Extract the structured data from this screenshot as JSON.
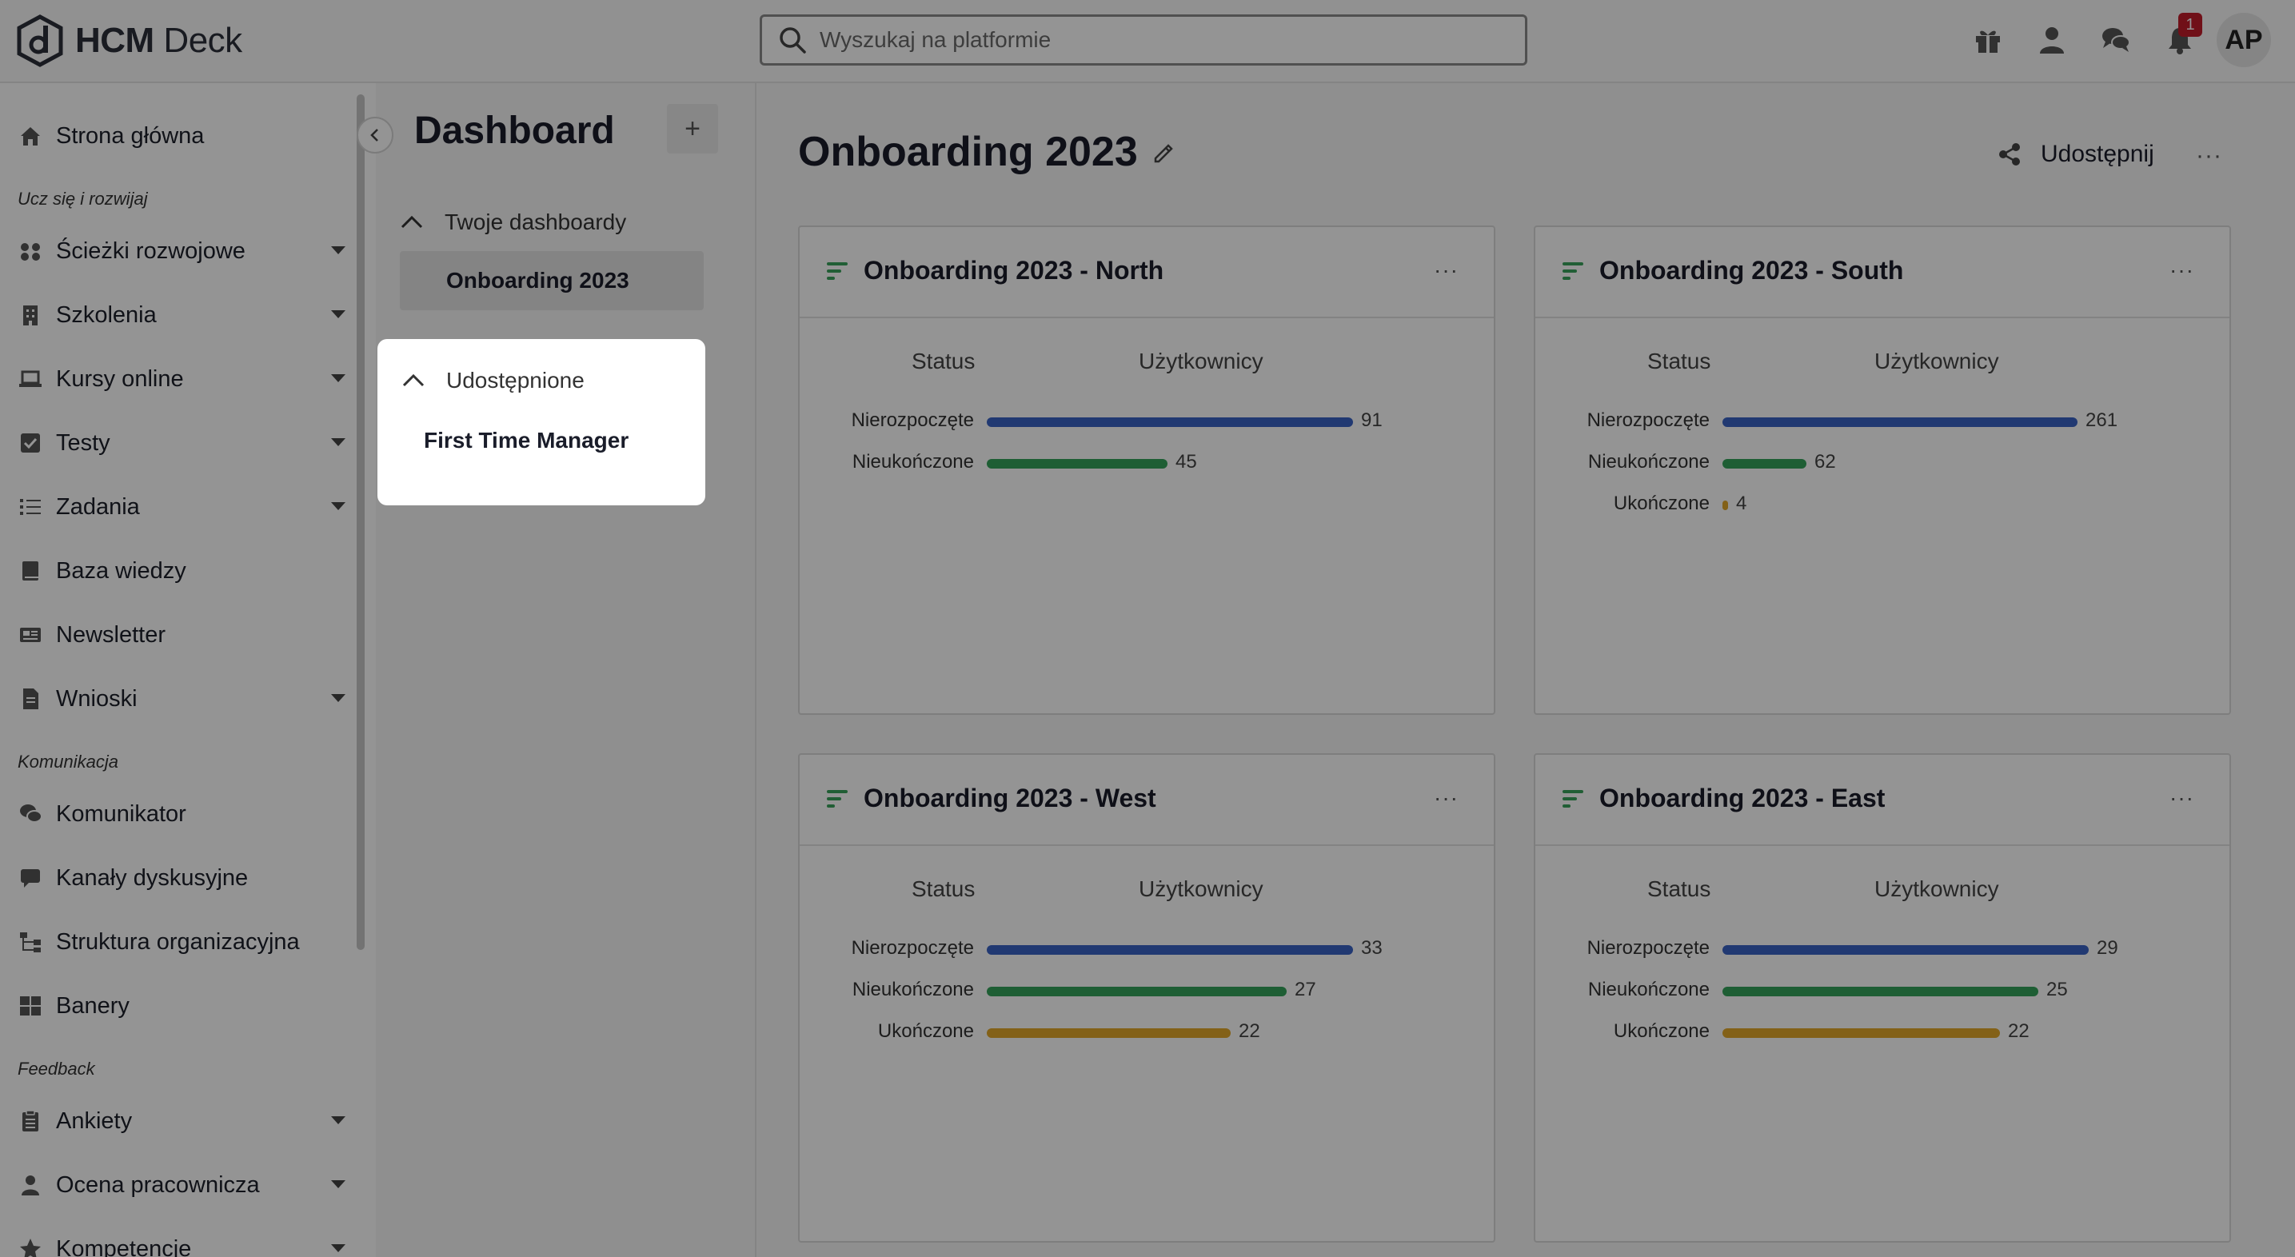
{
  "app": {
    "logo_bold": "HCM",
    "logo_light": " Deck"
  },
  "search": {
    "placeholder": "Wyszukaj na platformie"
  },
  "notifications": {
    "count": "1"
  },
  "user": {
    "initials": "AP"
  },
  "sidebar": {
    "items": [
      {
        "label": "Strona główna",
        "icon": "home-icon",
        "has_submenu": false
      },
      {
        "section": "Ucz się i rozwijaj"
      },
      {
        "label": "Ścieżki rozwojowe",
        "icon": "paths-icon",
        "has_submenu": true
      },
      {
        "label": "Szkolenia",
        "icon": "building-icon",
        "has_submenu": true
      },
      {
        "label": "Kursy online",
        "icon": "laptop-icon",
        "has_submenu": true
      },
      {
        "label": "Testy",
        "icon": "checkbox-icon",
        "has_submenu": true
      },
      {
        "label": "Zadania",
        "icon": "tasks-icon",
        "has_submenu": true
      },
      {
        "label": "Baza wiedzy",
        "icon": "book-icon",
        "has_submenu": false
      },
      {
        "label": "Newsletter",
        "icon": "newsletter-icon",
        "has_submenu": false
      },
      {
        "label": "Wnioski",
        "icon": "document-icon",
        "has_submenu": true
      },
      {
        "section": "Komunikacja"
      },
      {
        "label": "Komunikator",
        "icon": "chat-icon",
        "has_submenu": false
      },
      {
        "label": "Kanały dyskusyjne",
        "icon": "comment-icon",
        "has_submenu": false
      },
      {
        "label": "Struktura organizacyjna",
        "icon": "org-chart-icon",
        "has_submenu": false
      },
      {
        "label": "Banery",
        "icon": "grid-icon",
        "has_submenu": false
      },
      {
        "section": "Feedback"
      },
      {
        "label": "Ankiety",
        "icon": "clipboard-icon",
        "has_submenu": true
      },
      {
        "label": "Ocena pracownicza",
        "icon": "user-review-icon",
        "has_submenu": true
      },
      {
        "label": "Kompetencje",
        "icon": "star-icon",
        "has_submenu": true
      }
    ]
  },
  "dashboard_panel": {
    "title": "Dashboard",
    "add_label": "+",
    "groups": [
      {
        "label": "Twoje dashboardy",
        "items": [
          "Onboarding 2023"
        ]
      },
      {
        "label": "Udostępnione",
        "items": [
          "First Time Manager"
        ]
      }
    ]
  },
  "main": {
    "title": "Onboarding 2023",
    "share_label": "Udostępnij",
    "more_label": "···",
    "col_status": "Status",
    "col_users": "Użytkownicy"
  },
  "colors": {
    "blue": "#3a63c4",
    "green": "#35a35a",
    "yellow": "#e2a72a"
  },
  "chart_data": [
    {
      "type": "bar",
      "title": "Onboarding 2023 - North",
      "xlabel": "Użytkownicy",
      "ylabel": "Status",
      "categories": [
        "Nierozpoczęte",
        "Nieukończone"
      ],
      "values": [
        91,
        45
      ]
    },
    {
      "type": "bar",
      "title": "Onboarding 2023 - South",
      "xlabel": "Użytkownicy",
      "ylabel": "Status",
      "categories": [
        "Nierozpoczęte",
        "Nieukończone",
        "Ukończone"
      ],
      "values": [
        261,
        62,
        4
      ]
    },
    {
      "type": "bar",
      "title": "Onboarding 2023 - West",
      "xlabel": "Użytkownicy",
      "ylabel": "Status",
      "categories": [
        "Nierozpoczęte",
        "Nieukończone",
        "Ukończone"
      ],
      "values": [
        33,
        27,
        22
      ]
    },
    {
      "type": "bar",
      "title": "Onboarding 2023 - East",
      "xlabel": "Użytkownicy",
      "ylabel": "Status",
      "categories": [
        "Nierozpoczęte",
        "Nieukończone",
        "Ukończone"
      ],
      "values": [
        29,
        25,
        22
      ]
    }
  ]
}
